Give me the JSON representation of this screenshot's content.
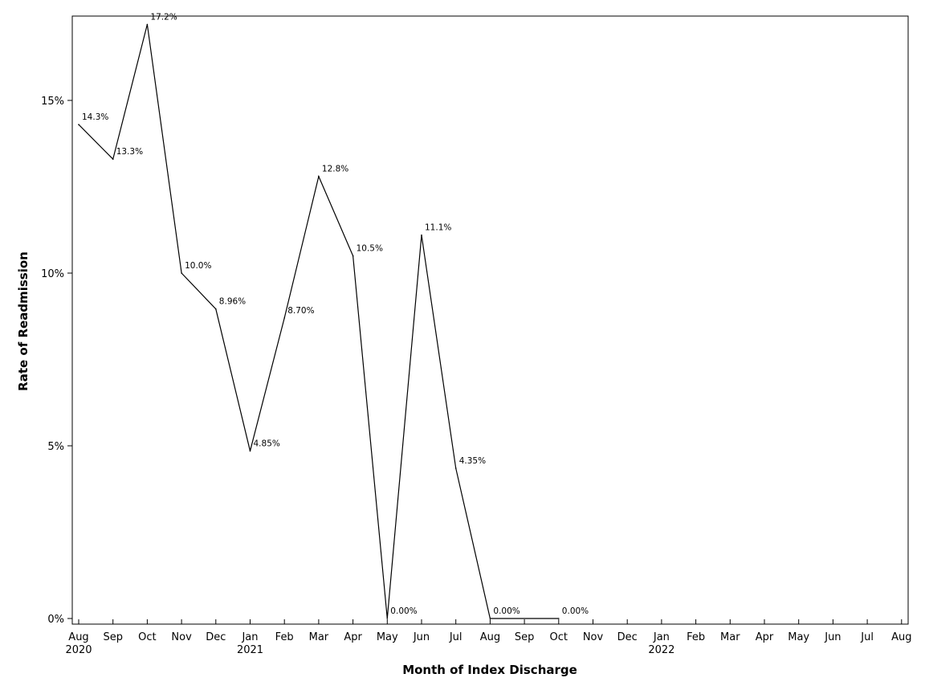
{
  "chart_data": {
    "type": "line",
    "title": "",
    "xlabel": "Month of Index Discharge",
    "ylabel": "Rate of Readmission",
    "x_ticks": [
      {
        "month": "Aug",
        "year": "2020"
      },
      {
        "month": "Sep",
        "year": ""
      },
      {
        "month": "Oct",
        "year": ""
      },
      {
        "month": "Nov",
        "year": ""
      },
      {
        "month": "Dec",
        "year": ""
      },
      {
        "month": "Jan",
        "year": "2021"
      },
      {
        "month": "Feb",
        "year": ""
      },
      {
        "month": "Mar",
        "year": ""
      },
      {
        "month": "Apr",
        "year": ""
      },
      {
        "month": "May",
        "year": ""
      },
      {
        "month": "Jun",
        "year": ""
      },
      {
        "month": "Jul",
        "year": ""
      },
      {
        "month": "Aug",
        "year": ""
      },
      {
        "month": "Sep",
        "year": ""
      },
      {
        "month": "Oct",
        "year": ""
      },
      {
        "month": "Nov",
        "year": ""
      },
      {
        "month": "Dec",
        "year": ""
      },
      {
        "month": "Jan",
        "year": "2022"
      },
      {
        "month": "Feb",
        "year": ""
      },
      {
        "month": "Mar",
        "year": ""
      },
      {
        "month": "Apr",
        "year": ""
      },
      {
        "month": "May",
        "year": ""
      },
      {
        "month": "Jun",
        "year": ""
      },
      {
        "month": "Jul",
        "year": ""
      },
      {
        "month": "Aug",
        "year": ""
      }
    ],
    "y_ticks": [
      {
        "value": 0,
        "label": "0%"
      },
      {
        "value": 5,
        "label": "5%"
      },
      {
        "value": 10,
        "label": "10%"
      },
      {
        "value": 15,
        "label": "15%"
      }
    ],
    "ylim": [
      0,
      17.5
    ],
    "grid": false,
    "series": [
      {
        "points": [
          {
            "x": "2020-08",
            "y": 14.3,
            "label": "14.3%"
          },
          {
            "x": "2020-09",
            "y": 13.3,
            "label": "13.3%"
          },
          {
            "x": "2020-10",
            "y": 17.2,
            "label": "17.2%"
          },
          {
            "x": "2020-11",
            "y": 10.0,
            "label": "10.0%"
          },
          {
            "x": "2020-12",
            "y": 8.96,
            "label": "8.96%"
          },
          {
            "x": "2021-01",
            "y": 4.85,
            "label": "4.85%"
          },
          {
            "x": "2021-02",
            "y": 8.7,
            "label": "8.70%"
          },
          {
            "x": "2021-03",
            "y": 12.8,
            "label": "12.8%"
          },
          {
            "x": "2021-04",
            "y": 10.5,
            "label": "10.5%"
          },
          {
            "x": "2021-05",
            "y": 0.0,
            "label": "0.00%"
          },
          {
            "x": "2021-06",
            "y": 11.1,
            "label": "11.1%"
          },
          {
            "x": "2021-07",
            "y": 4.35,
            "label": "4.35%"
          },
          {
            "x": "2021-08",
            "y": 0.0,
            "label": "0.00%"
          },
          {
            "x": "2021-10",
            "y": 0.0,
            "label": "0.00%"
          }
        ]
      }
    ]
  }
}
